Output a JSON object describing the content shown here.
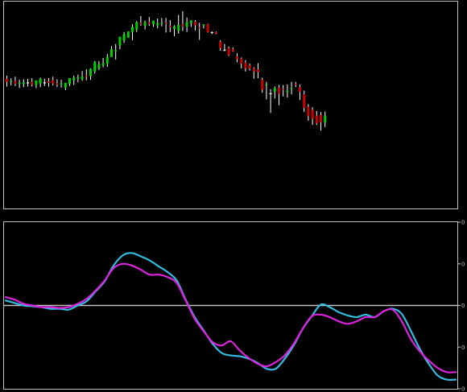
{
  "chart_data": [
    {
      "type": "candlestick",
      "colors": {
        "up": "#00cc00",
        "down": "#cc0000",
        "neutral": "#ffffff",
        "frame": "#c0c0c0",
        "background": "#000000"
      },
      "ylim": [
        -350,
        16
      ],
      "candles": [
        {
          "o": -114,
          "h": -108,
          "l": -129,
          "c": -120
        },
        {
          "o": -120,
          "h": -113,
          "l": -127,
          "c": -118
        },
        {
          "o": -118,
          "h": -110,
          "l": -128,
          "c": -124
        },
        {
          "o": -124,
          "h": -116,
          "l": -132,
          "c": -122
        },
        {
          "o": -124,
          "h": -115,
          "l": -130,
          "c": -121
        },
        {
          "o": -121,
          "h": -114,
          "l": -129,
          "c": -121
        },
        {
          "o": -120,
          "h": -113,
          "l": -129,
          "c": -125
        },
        {
          "o": -126,
          "h": -118,
          "l": -132,
          "c": -117
        },
        {
          "o": -123,
          "h": -112,
          "l": -130,
          "c": -114
        },
        {
          "o": -121,
          "h": -114,
          "l": -128,
          "c": -121
        },
        {
          "o": -119,
          "h": -113,
          "l": -129,
          "c": -122
        },
        {
          "o": -117,
          "h": -110,
          "l": -127,
          "c": -123
        },
        {
          "o": -123,
          "h": -115,
          "l": -130,
          "c": -125
        },
        {
          "o": -125,
          "h": -116,
          "l": -131,
          "c": -123
        },
        {
          "o": -131,
          "h": -125,
          "l": -136,
          "c": -122
        },
        {
          "o": -124,
          "h": -113,
          "l": -128,
          "c": -113
        },
        {
          "o": -117,
          "h": -108,
          "l": -126,
          "c": -112
        },
        {
          "o": -113,
          "h": -106,
          "l": -121,
          "c": -111
        },
        {
          "o": -115,
          "h": -99,
          "l": -118,
          "c": -110
        },
        {
          "o": -108,
          "h": -96,
          "l": -117,
          "c": -109
        },
        {
          "o": -109,
          "h": -94,
          "l": -116,
          "c": -95
        },
        {
          "o": -100,
          "h": -80,
          "l": -104,
          "c": -82
        },
        {
          "o": -94,
          "h": -80,
          "l": -97,
          "c": -86
        },
        {
          "o": -88,
          "h": -74,
          "l": -92,
          "c": -84
        },
        {
          "o": -85,
          "h": -66,
          "l": -91,
          "c": -72
        },
        {
          "o": -72,
          "h": -51,
          "l": -72,
          "c": -57
        },
        {
          "o": -61,
          "h": -47,
          "l": -77,
          "c": -59
        },
        {
          "o": -50,
          "h": -33,
          "l": -57,
          "c": -33
        },
        {
          "o": -40,
          "h": -24,
          "l": -45,
          "c": -28
        },
        {
          "o": -35,
          "h": -23,
          "l": -35,
          "c": -23
        },
        {
          "o": -24,
          "h": -9,
          "l": -40,
          "c": -14
        },
        {
          "o": -19,
          "h": -3,
          "l": -24,
          "c": -5
        },
        {
          "o": -7,
          "h": 7,
          "l": -12,
          "c": -9
        },
        {
          "o": -12,
          "h": -2,
          "l": -19,
          "c": -5
        },
        {
          "o": -5,
          "h": 5,
          "l": -12,
          "c": -8
        },
        {
          "o": -9,
          "h": -2,
          "l": -14,
          "c": -2
        },
        {
          "o": -11,
          "h": 2,
          "l": -17,
          "c": -7
        },
        {
          "o": -7,
          "h": 3,
          "l": -13,
          "c": -6
        },
        {
          "o": -6,
          "h": 3,
          "l": -25,
          "c": -7
        },
        {
          "o": -12,
          "h": -1,
          "l": -24,
          "c": -14
        },
        {
          "o": -18,
          "h": -11,
          "l": -32,
          "c": -13
        },
        {
          "o": -22,
          "h": 9,
          "l": -27,
          "c": -10
        },
        {
          "o": -9,
          "h": 16,
          "l": -22,
          "c": -13
        },
        {
          "o": -14,
          "h": 4,
          "l": -24,
          "c": -5
        },
        {
          "o": -7,
          "h": -1,
          "l": -14,
          "c": -2
        },
        {
          "o": -4,
          "h": -1,
          "l": -21,
          "c": -11
        },
        {
          "o": -15,
          "h": -6,
          "l": -39,
          "c": -16
        },
        {
          "o": -11,
          "h": -9,
          "l": -17,
          "c": -9
        },
        {
          "o": -9,
          "h": -8,
          "l": -25,
          "c": -24
        },
        {
          "o": -24,
          "h": -23,
          "l": -28,
          "c": -24
        },
        {
          "o": -24,
          "h": -23,
          "l": -28,
          "c": -27
        },
        {
          "o": -43,
          "h": -40,
          "l": -60,
          "c": -55
        },
        {
          "o": -58,
          "h": -47,
          "l": -61,
          "c": -58
        },
        {
          "o": -55,
          "h": -52,
          "l": -70,
          "c": -68
        },
        {
          "o": -57,
          "h": -54,
          "l": -62,
          "c": -61
        },
        {
          "o": -71,
          "h": -65,
          "l": -82,
          "c": -76
        },
        {
          "o": -75,
          "h": -73,
          "l": -94,
          "c": -85
        },
        {
          "o": -83,
          "h": -78,
          "l": -100,
          "c": -94
        },
        {
          "o": -88,
          "h": -85,
          "l": -98,
          "c": -94
        },
        {
          "o": -94,
          "h": -92,
          "l": -114,
          "c": -100
        },
        {
          "o": -96,
          "h": -84,
          "l": -113,
          "c": -101
        },
        {
          "o": -116,
          "h": -112,
          "l": -141,
          "c": -135
        },
        {
          "o": -126,
          "h": -120,
          "l": -154,
          "c": -125
        },
        {
          "o": -142,
          "h": -134,
          "l": -180,
          "c": -142
        },
        {
          "o": -139,
          "h": -129,
          "l": -152,
          "c": -132
        },
        {
          "o": -131,
          "h": -126,
          "l": -165,
          "c": -143
        },
        {
          "o": -133,
          "h": -126,
          "l": -148,
          "c": -135
        },
        {
          "o": -140,
          "h": -125,
          "l": -150,
          "c": -137
        },
        {
          "o": -133,
          "h": -120,
          "l": -144,
          "c": -132
        },
        {
          "o": -124,
          "h": -120,
          "l": -130,
          "c": -125
        },
        {
          "o": -130,
          "h": -125,
          "l": -155,
          "c": -139
        },
        {
          "o": -144,
          "h": -137,
          "l": -178,
          "c": -170
        },
        {
          "o": -168,
          "h": -163,
          "l": -195,
          "c": -186
        },
        {
          "o": -174,
          "h": -169,
          "l": -203,
          "c": -191
        },
        {
          "o": -185,
          "h": -176,
          "l": -203,
          "c": -200
        },
        {
          "o": -184,
          "h": -178,
          "l": -214,
          "c": -198
        },
        {
          "o": -198,
          "h": -177,
          "l": -207,
          "c": -185
        }
      ]
    },
    {
      "type": "line",
      "colors": {
        "zero_line": "#c0c0c0",
        "frame": "#c0c0c0",
        "background": "#000000"
      },
      "ylim": [
        -1.0,
        1.0
      ],
      "y_ticks": [
        {
          "value": 1.0,
          "label": "0"
        },
        {
          "value": 0.5,
          "label": "0"
        },
        {
          "value": 0.0,
          "label": "0"
        },
        {
          "value": -0.5,
          "label": "0"
        },
        {
          "value": -1.0,
          "label": "0"
        }
      ],
      "series": [
        {
          "color": "#33bbe0",
          "values": [
            0.06,
            0.03,
            0.0,
            -0.01,
            -0.02,
            -0.04,
            -0.04,
            -0.05,
            0.0,
            0.05,
            0.17,
            0.29,
            0.48,
            0.6,
            0.63,
            0.59,
            0.54,
            0.47,
            0.4,
            0.3,
            0.07,
            -0.14,
            -0.3,
            -0.46,
            -0.57,
            -0.6,
            -0.61,
            -0.64,
            -0.69,
            -0.76,
            -0.76,
            -0.64,
            -0.48,
            -0.28,
            -0.13,
            0.01,
            -0.02,
            -0.08,
            -0.12,
            -0.14,
            -0.11,
            -0.14,
            -0.07,
            -0.04,
            -0.1,
            -0.3,
            -0.52,
            -0.7,
            -0.84,
            -0.89,
            -0.89
          ]
        },
        {
          "color": "#dd22dd",
          "values": [
            0.1,
            0.07,
            0.02,
            0.0,
            -0.02,
            -0.02,
            -0.03,
            -0.02,
            0.02,
            0.08,
            0.18,
            0.3,
            0.45,
            0.5,
            0.48,
            0.43,
            0.37,
            0.37,
            0.34,
            0.27,
            0.06,
            -0.16,
            -0.31,
            -0.44,
            -0.48,
            -0.43,
            -0.54,
            -0.63,
            -0.7,
            -0.73,
            -0.68,
            -0.6,
            -0.46,
            -0.28,
            -0.13,
            -0.11,
            -0.14,
            -0.19,
            -0.22,
            -0.19,
            -0.14,
            -0.14,
            -0.07,
            -0.05,
            -0.19,
            -0.4,
            -0.55,
            -0.66,
            -0.75,
            -0.8,
            -0.8
          ]
        }
      ]
    }
  ]
}
